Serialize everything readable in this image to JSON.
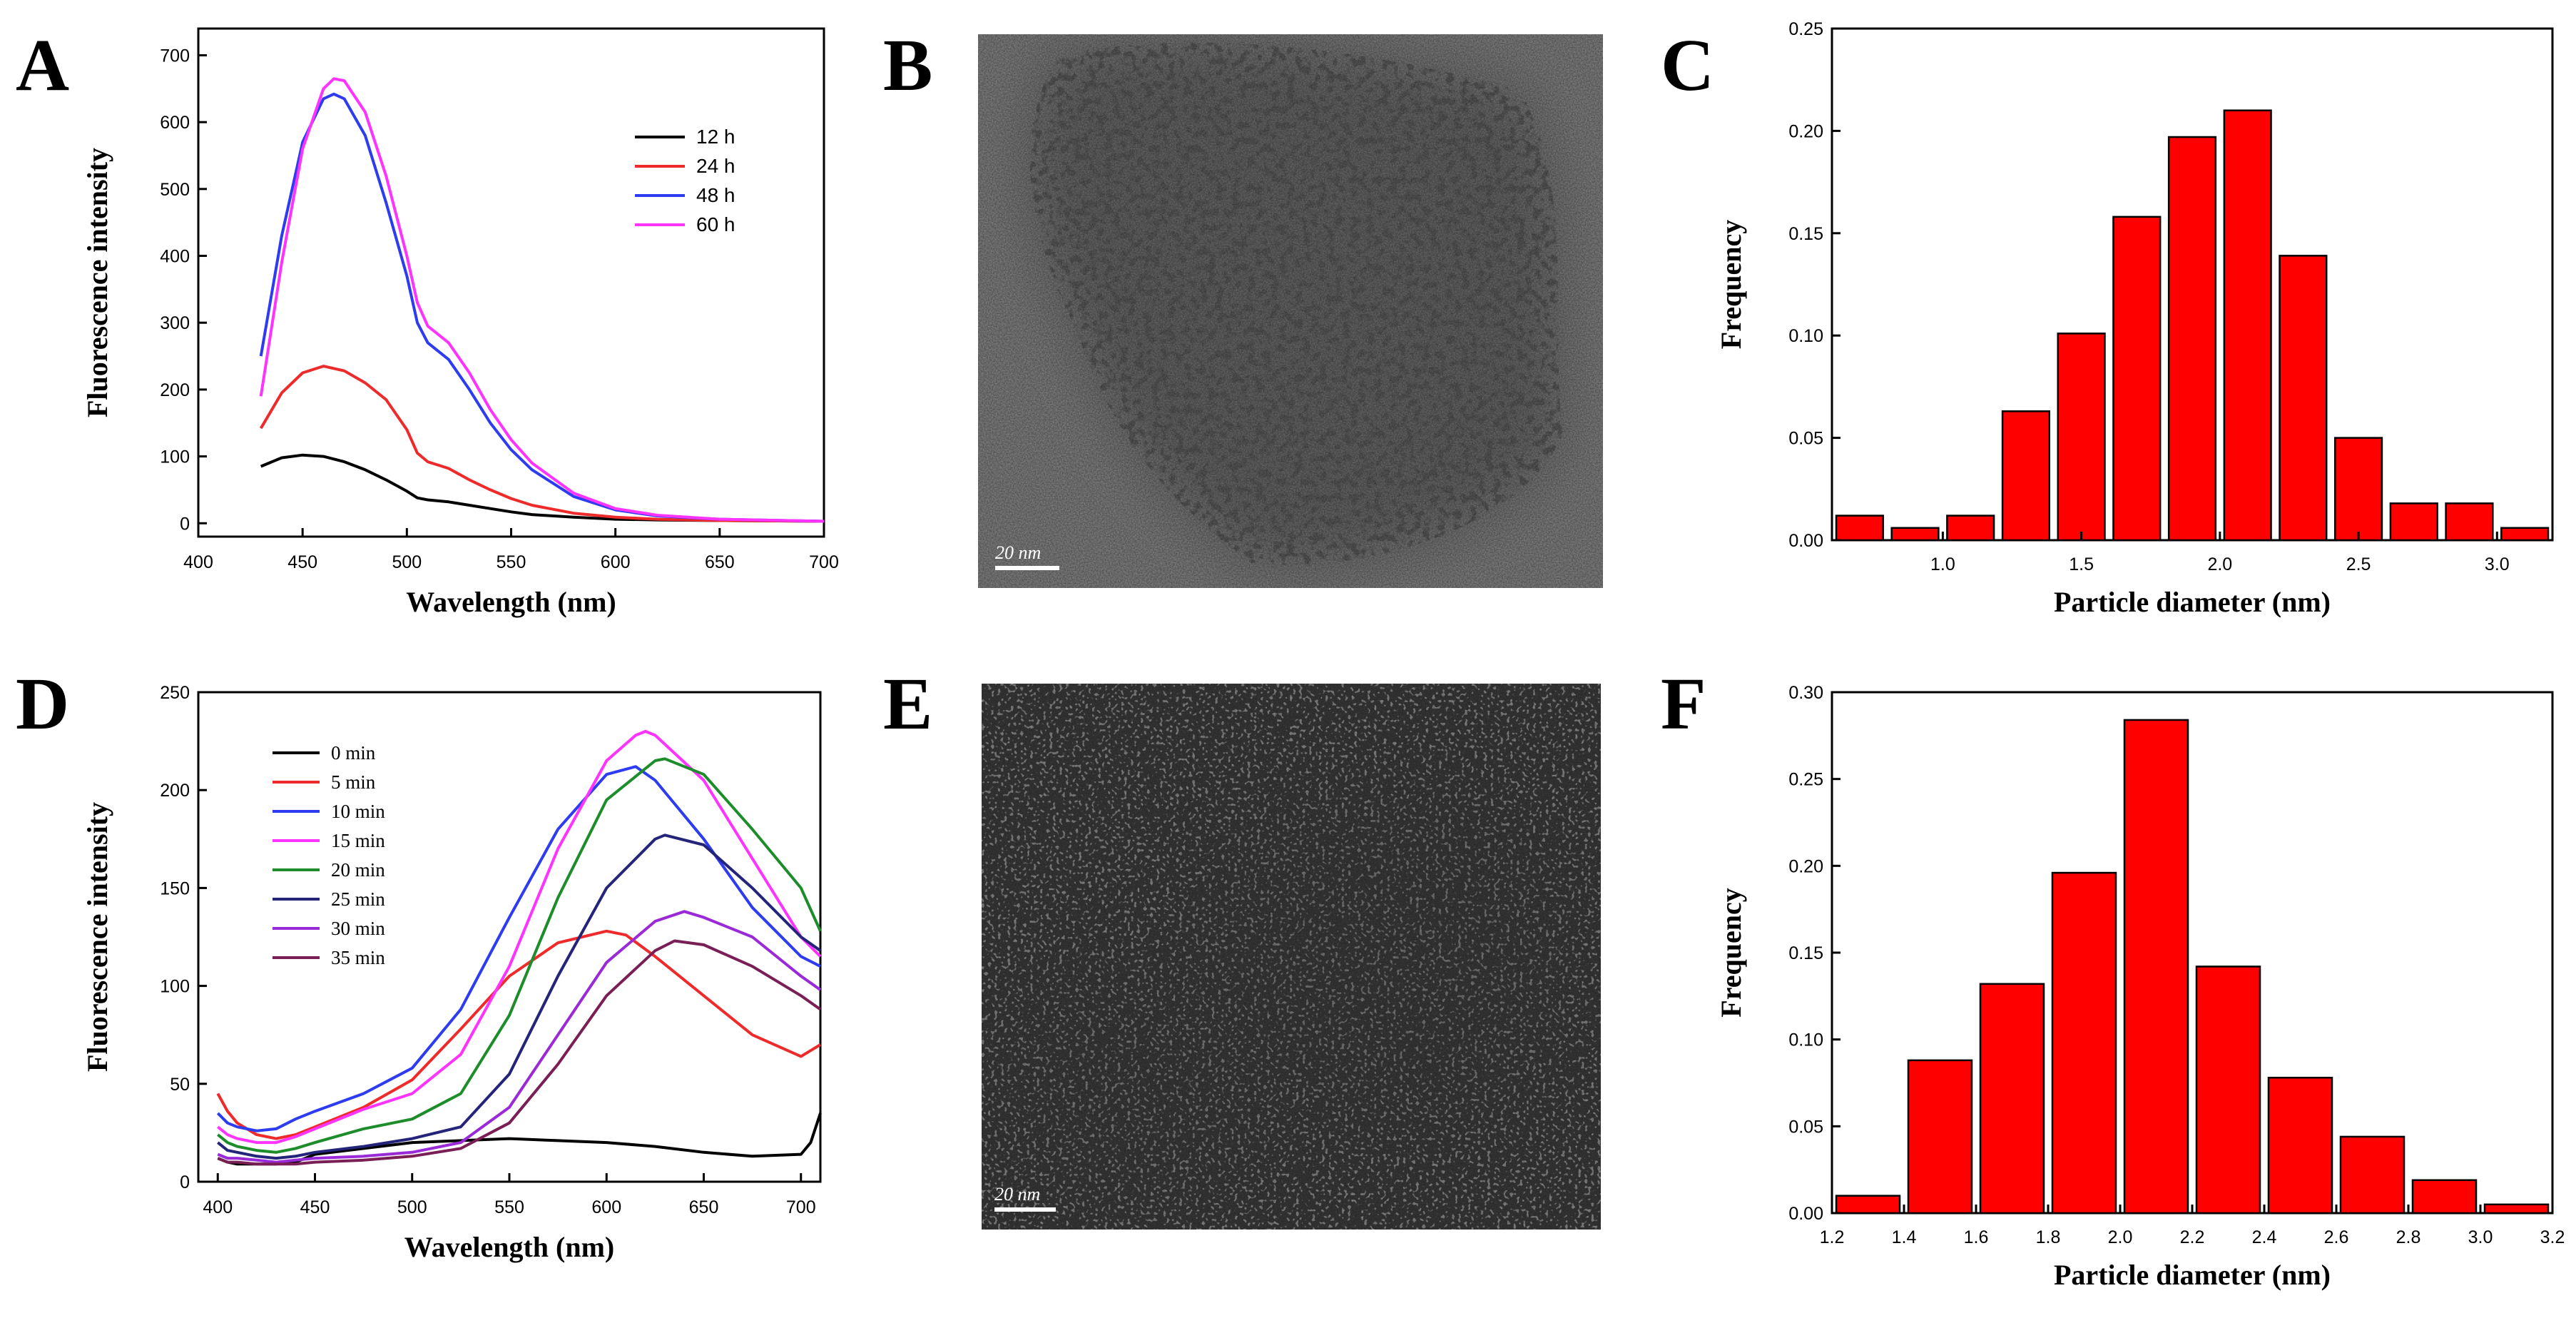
{
  "panel_labels": [
    "A",
    "B",
    "C",
    "D",
    "E",
    "F"
  ],
  "scale_bars": [
    "20 nm",
    "20 nm"
  ],
  "colors": {
    "black": "#000000",
    "red": "#ee2a2a",
    "blue": "#2d3cf0",
    "magenta": "#ff33ff",
    "green": "#1d8c2a",
    "navy": "#24247a",
    "purple": "#9a2ad8",
    "maroon": "#7a1f55",
    "bar": "#ff0000"
  },
  "chart_data": [
    {
      "panel": "A",
      "type": "line",
      "xlabel": "Wavelength (nm)",
      "ylabel": "Fluorescence intensity",
      "xlim": [
        400,
        700
      ],
      "ylim": [
        -20,
        740
      ],
      "xticks": [
        400,
        450,
        500,
        550,
        600,
        650,
        700
      ],
      "yticks": [
        0,
        100,
        200,
        300,
        400,
        500,
        600,
        700
      ],
      "legend_position": "top-right",
      "series": [
        {
          "name": "12 h",
          "color": "#000000",
          "x": [
            430,
            440,
            450,
            460,
            470,
            480,
            490,
            500,
            505,
            510,
            520,
            530,
            540,
            550,
            560,
            580,
            600,
            620,
            650,
            700
          ],
          "y": [
            85,
            98,
            102,
            100,
            92,
            80,
            65,
            48,
            38,
            35,
            32,
            27,
            22,
            17,
            13,
            9,
            6,
            5,
            4,
            3
          ]
        },
        {
          "name": "24 h",
          "color": "#ee2a2a",
          "x": [
            430,
            440,
            450,
            460,
            470,
            480,
            490,
            500,
            505,
            510,
            520,
            530,
            540,
            550,
            560,
            580,
            600,
            620,
            650,
            700
          ],
          "y": [
            142,
            195,
            225,
            235,
            228,
            210,
            185,
            140,
            105,
            92,
            82,
            65,
            50,
            37,
            27,
            15,
            9,
            6,
            4,
            3
          ]
        },
        {
          "name": "48 h",
          "color": "#2d3cf0",
          "x": [
            430,
            440,
            450,
            460,
            465,
            470,
            480,
            490,
            500,
            505,
            510,
            520,
            530,
            540,
            550,
            560,
            580,
            600,
            620,
            650,
            700
          ],
          "y": [
            250,
            430,
            570,
            635,
            642,
            635,
            580,
            480,
            370,
            300,
            270,
            245,
            200,
            150,
            110,
            80,
            40,
            20,
            11,
            6,
            3
          ]
        },
        {
          "name": "60 h",
          "color": "#ff33ff",
          "x": [
            430,
            440,
            450,
            460,
            465,
            470,
            480,
            490,
            500,
            505,
            510,
            520,
            530,
            540,
            550,
            560,
            580,
            600,
            620,
            650,
            700
          ],
          "y": [
            190,
            390,
            560,
            650,
            665,
            662,
            615,
            520,
            400,
            330,
            295,
            270,
            225,
            170,
            125,
            90,
            45,
            22,
            12,
            6,
            3
          ]
        }
      ]
    },
    {
      "panel": "C",
      "type": "bar",
      "xlabel": "Particle diameter (nm)",
      "ylabel": "Frequency",
      "xlim": [
        0.6,
        3.2
      ],
      "ylim": [
        0,
        0.25
      ],
      "xticks": [
        "1.0",
        "1.5",
        "2.0",
        "2.5",
        "3.0"
      ],
      "yticks": [
        "0.00",
        "0.05",
        "0.10",
        "0.15",
        "0.20",
        "0.25"
      ],
      "bin_width": 0.2,
      "x": [
        0.7,
        0.9,
        1.1,
        1.3,
        1.5,
        1.7,
        1.9,
        2.1,
        2.3,
        2.5,
        2.7,
        2.9,
        3.1
      ],
      "values": [
        0.012,
        0.006,
        0.012,
        0.063,
        0.101,
        0.158,
        0.197,
        0.21,
        0.139,
        0.05,
        0.018,
        0.018,
        0.006
      ]
    },
    {
      "panel": "D",
      "type": "line",
      "xlabel": "Wavelength (nm)",
      "ylabel": "Fluorescence intensity",
      "xlim": [
        390,
        710
      ],
      "ylim": [
        0,
        250
      ],
      "xticks": [
        400,
        450,
        500,
        550,
        600,
        650,
        700
      ],
      "yticks": [
        0,
        50,
        100,
        150,
        200,
        250
      ],
      "legend_position": "top-left",
      "series": [
        {
          "name": "0 min",
          "color": "#000000",
          "x": [
            400,
            405,
            410,
            420,
            430,
            440,
            450,
            475,
            500,
            525,
            550,
            575,
            600,
            625,
            650,
            675,
            700,
            705,
            710
          ],
          "y": [
            12,
            10,
            9,
            9,
            9,
            10,
            14,
            17,
            20,
            21,
            22,
            21,
            20,
            18,
            15,
            13,
            14,
            20,
            35
          ]
        },
        {
          "name": "5 min",
          "color": "#ee2a2a",
          "x": [
            400,
            405,
            410,
            420,
            430,
            440,
            450,
            475,
            500,
            525,
            550,
            575,
            600,
            610,
            625,
            650,
            675,
            700,
            710
          ],
          "y": [
            45,
            36,
            30,
            24,
            22,
            24,
            28,
            38,
            52,
            78,
            105,
            122,
            128,
            126,
            115,
            95,
            75,
            64,
            70
          ]
        },
        {
          "name": "10 min",
          "color": "#2d3cf0",
          "x": [
            400,
            405,
            410,
            420,
            430,
            440,
            450,
            475,
            500,
            525,
            550,
            575,
            600,
            615,
            625,
            650,
            675,
            700,
            710
          ],
          "y": [
            35,
            30,
            28,
            26,
            27,
            32,
            36,
            45,
            58,
            88,
            135,
            180,
            208,
            212,
            205,
            175,
            140,
            115,
            110
          ]
        },
        {
          "name": "15 min",
          "color": "#ff33ff",
          "x": [
            400,
            405,
            410,
            420,
            430,
            440,
            450,
            475,
            500,
            525,
            550,
            575,
            600,
            615,
            620,
            625,
            650,
            675,
            700,
            710
          ],
          "y": [
            28,
            24,
            22,
            20,
            20,
            23,
            27,
            37,
            45,
            65,
            110,
            170,
            215,
            228,
            230,
            228,
            205,
            165,
            125,
            115
          ]
        },
        {
          "name": "20 min",
          "color": "#1d8c2a",
          "x": [
            400,
            405,
            410,
            420,
            430,
            440,
            450,
            475,
            500,
            525,
            550,
            575,
            600,
            625,
            630,
            650,
            675,
            700,
            710
          ],
          "y": [
            24,
            20,
            18,
            16,
            15,
            17,
            20,
            27,
            32,
            45,
            85,
            145,
            195,
            215,
            216,
            208,
            180,
            150,
            128
          ]
        },
        {
          "name": "25 min",
          "color": "#24247a",
          "x": [
            400,
            405,
            410,
            420,
            430,
            440,
            450,
            475,
            500,
            525,
            550,
            575,
            600,
            625,
            630,
            650,
            675,
            700,
            710
          ],
          "y": [
            20,
            16,
            15,
            13,
            12,
            13,
            15,
            18,
            22,
            28,
            55,
            105,
            150,
            175,
            177,
            172,
            150,
            125,
            118
          ]
        },
        {
          "name": "30 min",
          "color": "#9a2ad8",
          "x": [
            400,
            405,
            410,
            420,
            430,
            440,
            450,
            475,
            500,
            525,
            550,
            575,
            600,
            625,
            640,
            650,
            675,
            700,
            710
          ],
          "y": [
            14,
            12,
            12,
            11,
            10,
            11,
            12,
            13,
            15,
            20,
            38,
            75,
            112,
            133,
            138,
            135,
            125,
            105,
            98
          ]
        },
        {
          "name": "35 min",
          "color": "#7a1f55",
          "x": [
            400,
            405,
            410,
            420,
            430,
            440,
            450,
            475,
            500,
            525,
            550,
            575,
            600,
            625,
            635,
            650,
            675,
            700,
            710
          ],
          "y": [
            12,
            10,
            10,
            9,
            9,
            9,
            10,
            11,
            13,
            17,
            30,
            60,
            95,
            118,
            123,
            121,
            110,
            95,
            88
          ]
        }
      ]
    },
    {
      "panel": "F",
      "type": "bar",
      "xlabel": "Particle diameter (nm)",
      "ylabel": "Frequency",
      "xlim": [
        1.2,
        3.2
      ],
      "ylim": [
        0,
        0.3
      ],
      "xticks": [
        "1.2",
        "1.4",
        "1.6",
        "1.8",
        "2.0",
        "2.2",
        "2.4",
        "2.6",
        "2.8",
        "3.0",
        "3.2"
      ],
      "yticks": [
        "0.00",
        "0.05",
        "0.10",
        "0.15",
        "0.20",
        "0.25",
        "0.30"
      ],
      "bin_width": 0.2,
      "x": [
        1.3,
        1.5,
        1.7,
        1.9,
        2.1,
        2.3,
        2.5,
        2.7,
        2.9,
        3.1
      ],
      "values": [
        0.01,
        0.088,
        0.132,
        0.196,
        0.284,
        0.142,
        0.078,
        0.044,
        0.019,
        0.005
      ]
    }
  ]
}
